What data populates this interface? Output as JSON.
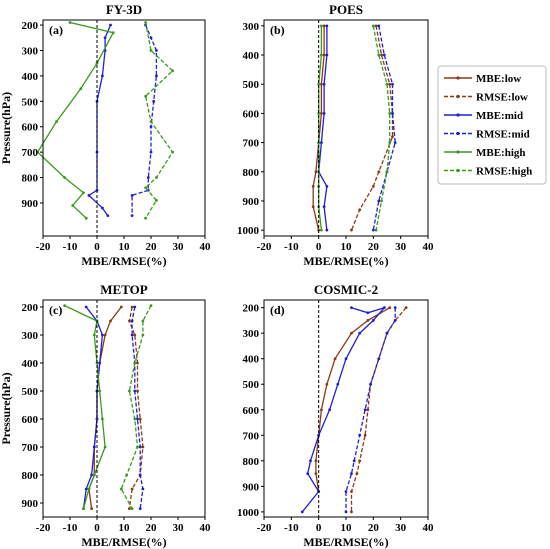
{
  "chart_data": [
    {
      "type": "line",
      "panel": "(a)",
      "title": "FY-3D",
      "xlabel": "MBE/RMSE(%)",
      "ylabel": "Pressure(hPa)",
      "xlim": [
        -20,
        40
      ],
      "ylim": [
        180,
        1030
      ],
      "y_inverted": true,
      "xticks": [
        -20,
        -10,
        0,
        10,
        20,
        30,
        40
      ],
      "yticks": [
        200,
        300,
        400,
        500,
        600,
        700,
        800,
        900
      ],
      "series": [
        {
          "name": "MBE:mid",
          "color": "#1f1fd6",
          "style": "solid",
          "points": [
            [
              5,
              200
            ],
            [
              3,
              250
            ],
            [
              3,
              300
            ],
            [
              2,
              400
            ],
            [
              0,
              500
            ],
            [
              0,
              700
            ],
            [
              0,
              850
            ],
            [
              -3,
              870
            ],
            [
              2,
              920
            ],
            [
              4,
              950
            ]
          ]
        },
        {
          "name": "RMSE:mid",
          "color": "#1f1fd6",
          "style": "dashed",
          "points": [
            [
              18,
              200
            ],
            [
              20,
              250
            ],
            [
              22,
              300
            ],
            [
              22,
              400
            ],
            [
              21,
              500
            ],
            [
              20,
              600
            ],
            [
              20,
              700
            ],
            [
              19,
              800
            ],
            [
              19,
              850
            ],
            [
              13,
              870
            ],
            [
              13,
              950
            ]
          ]
        },
        {
          "name": "MBE:high",
          "color": "#3a9a1a",
          "style": "solid",
          "points": [
            [
              -10,
              190
            ],
            [
              6,
              230
            ],
            [
              0,
              350
            ],
            [
              -6,
              450
            ],
            [
              -15,
              580
            ],
            [
              -22,
              700
            ],
            [
              -12,
              800
            ],
            [
              -5,
              860
            ],
            [
              -9,
              910
            ],
            [
              -4,
              960
            ]
          ]
        },
        {
          "name": "RMSE:high",
          "color": "#3a9a1a",
          "style": "dashed",
          "points": [
            [
              18,
              190
            ],
            [
              20,
              300
            ],
            [
              28,
              380
            ],
            [
              18,
              480
            ],
            [
              20,
              580
            ],
            [
              28,
              700
            ],
            [
              22,
              800
            ],
            [
              18,
              840
            ],
            [
              22,
              890
            ],
            [
              18,
              960
            ]
          ]
        }
      ]
    },
    {
      "type": "line",
      "panel": "(b)",
      "title": "POES",
      "xlabel": "MBE/RMSE(%)",
      "ylabel": "",
      "xlim": [
        -20,
        40
      ],
      "ylim": [
        280,
        1020
      ],
      "y_inverted": true,
      "xticks": [
        -20,
        -10,
        0,
        10,
        20,
        30,
        40
      ],
      "yticks": [
        300,
        400,
        500,
        600,
        700,
        800,
        900,
        1000
      ],
      "series": [
        {
          "name": "MBE:low",
          "color": "#8b3a14",
          "style": "solid",
          "points": [
            [
              2,
              300
            ],
            [
              2,
              400
            ],
            [
              1,
              500
            ],
            [
              1,
              600
            ],
            [
              0,
              700
            ],
            [
              -1,
              800
            ],
            [
              -2,
              850
            ],
            [
              -2,
              920
            ],
            [
              0,
              1000
            ]
          ]
        },
        {
          "name": "RMSE:low",
          "color": "#8b3a14",
          "style": "dashed",
          "points": [
            [
              21,
              300
            ],
            [
              23,
              400
            ],
            [
              26,
              500
            ],
            [
              27,
              600
            ],
            [
              27,
              680
            ],
            [
              22,
              800
            ],
            [
              20,
              850
            ],
            [
              15,
              930
            ],
            [
              12,
              1000
            ]
          ]
        },
        {
          "name": "MBE:mid",
          "color": "#1f1fd6",
          "style": "solid",
          "points": [
            [
              3,
              300
            ],
            [
              3,
              400
            ],
            [
              2,
              500
            ],
            [
              2,
              600
            ],
            [
              1,
              700
            ],
            [
              0,
              800
            ],
            [
              3,
              850
            ],
            [
              2,
              920
            ],
            [
              3,
              1000
            ]
          ]
        },
        {
          "name": "RMSE:mid",
          "color": "#1f1fd6",
          "style": "dashed",
          "points": [
            [
              22,
              300
            ],
            [
              24,
              400
            ],
            [
              27,
              500
            ],
            [
              27,
              600
            ],
            [
              28,
              700
            ],
            [
              25,
              800
            ],
            [
              22,
              900
            ],
            [
              20,
              1000
            ]
          ]
        },
        {
          "name": "MBE:high",
          "color": "#3a9a1a",
          "style": "solid",
          "points": [
            [
              1,
              300
            ],
            [
              1,
              400
            ],
            [
              0,
              500
            ],
            [
              0,
              600
            ],
            [
              0,
              700
            ],
            [
              0,
              800
            ],
            [
              0,
              850
            ],
            [
              0,
              920
            ],
            [
              1,
              1000
            ]
          ]
        },
        {
          "name": "RMSE:high",
          "color": "#3a9a1a",
          "style": "dashed",
          "points": [
            [
              20,
              300
            ],
            [
              22,
              400
            ],
            [
              25,
              500
            ],
            [
              26,
              600
            ],
            [
              26,
              700
            ],
            [
              25,
              800
            ],
            [
              23,
              900
            ],
            [
              21,
              1000
            ]
          ]
        }
      ]
    },
    {
      "type": "line",
      "panel": "(c)",
      "title": "METOP",
      "xlabel": "MBE/RMSE(%)",
      "ylabel": "Pressure(hPa)",
      "xlim": [
        -20,
        40
      ],
      "ylim": [
        175,
        950
      ],
      "y_inverted": true,
      "xticks": [
        -20,
        -10,
        0,
        10,
        20,
        30,
        40
      ],
      "yticks": [
        200,
        300,
        400,
        500,
        600,
        700,
        800,
        900
      ],
      "series": [
        {
          "name": "MBE:low",
          "color": "#8b3a14",
          "style": "solid",
          "points": [
            [
              9,
              200
            ],
            [
              5,
              250
            ],
            [
              3,
              300
            ],
            [
              1,
              400
            ],
            [
              0,
              500
            ],
            [
              0,
              600
            ],
            [
              -1,
              700
            ],
            [
              -1,
              800
            ],
            [
              -3,
              850
            ],
            [
              -2,
              920
            ]
          ]
        },
        {
          "name": "RMSE:low",
          "color": "#8b3a14",
          "style": "dashed",
          "points": [
            [
              13,
              200
            ],
            [
              12,
              250
            ],
            [
              14,
              300
            ],
            [
              15,
              400
            ],
            [
              15,
              500
            ],
            [
              16,
              600
            ],
            [
              17,
              700
            ],
            [
              16,
              800
            ],
            [
              13,
              850
            ],
            [
              12,
              920
            ]
          ]
        },
        {
          "name": "MBE:mid",
          "color": "#1f1fd6",
          "style": "solid",
          "points": [
            [
              -4,
              200
            ],
            [
              0,
              250
            ],
            [
              2,
              300
            ],
            [
              1,
              400
            ],
            [
              0,
              500
            ],
            [
              0,
              600
            ],
            [
              -1,
              700
            ],
            [
              -2,
              800
            ],
            [
              -4,
              850
            ],
            [
              -5,
              920
            ]
          ]
        },
        {
          "name": "RMSE:mid",
          "color": "#1f1fd6",
          "style": "dashed",
          "points": [
            [
              14,
              200
            ],
            [
              13,
              250
            ],
            [
              13,
              300
            ],
            [
              14,
              400
            ],
            [
              14,
              500
            ],
            [
              15,
              600
            ],
            [
              16,
              700
            ],
            [
              16,
              800
            ],
            [
              17,
              850
            ],
            [
              16,
              920
            ]
          ]
        },
        {
          "name": "MBE:high",
          "color": "#3a9a1a",
          "style": "solid",
          "points": [
            [
              -12,
              195
            ],
            [
              0,
              250
            ],
            [
              -1,
              300
            ],
            [
              0,
              400
            ],
            [
              1,
              500
            ],
            [
              2,
              600
            ],
            [
              3,
              700
            ],
            [
              -1,
              800
            ],
            [
              -3,
              850
            ],
            [
              -5,
              920
            ]
          ]
        },
        {
          "name": "RMSE:high",
          "color": "#3a9a1a",
          "style": "dashed",
          "points": [
            [
              20,
              195
            ],
            [
              17,
              250
            ],
            [
              17,
              300
            ],
            [
              14,
              400
            ],
            [
              12,
              500
            ],
            [
              14,
              600
            ],
            [
              15,
              700
            ],
            [
              11,
              800
            ],
            [
              9,
              850
            ],
            [
              13,
              920
            ]
          ]
        }
      ]
    },
    {
      "type": "line",
      "panel": "(d)",
      "title": "COSMIC-2",
      "xlabel": "MBE/RMSE(%)",
      "ylabel": "",
      "xlim": [
        -20,
        40
      ],
      "ylim": [
        170,
        1020
      ],
      "y_inverted": true,
      "xticks": [
        -20,
        -10,
        0,
        10,
        20,
        30,
        40
      ],
      "yticks": [
        200,
        300,
        400,
        500,
        600,
        700,
        800,
        900,
        1000
      ],
      "series": [
        {
          "name": "MBE:low",
          "color": "#8b3a14",
          "style": "solid",
          "points": [
            [
              26,
              200
            ],
            [
              18,
              250
            ],
            [
              12,
              300
            ],
            [
              6,
              400
            ],
            [
              3,
              500
            ],
            [
              1,
              600
            ],
            [
              0,
              700
            ],
            [
              -1,
              800
            ],
            [
              -1,
              850
            ],
            [
              0,
              920
            ]
          ]
        },
        {
          "name": "RMSE:low",
          "color": "#8b3a14",
          "style": "dashed",
          "points": [
            [
              32,
              200
            ],
            [
              28,
              250
            ],
            [
              25,
              300
            ],
            [
              22,
              400
            ],
            [
              19,
              500
            ],
            [
              18,
              600
            ],
            [
              17,
              700
            ],
            [
              15,
              800
            ],
            [
              14,
              850
            ],
            [
              12,
              920
            ],
            [
              12,
              1000
            ]
          ]
        },
        {
          "name": "MBE:mid",
          "color": "#1f1fd6",
          "style": "solid",
          "points": [
            [
              12,
              200
            ],
            [
              18,
              220
            ],
            [
              24,
              200
            ],
            [
              20,
              250
            ],
            [
              15,
              300
            ],
            [
              10,
              400
            ],
            [
              7,
              500
            ],
            [
              4,
              600
            ],
            [
              0,
              700
            ],
            [
              -3,
              800
            ],
            [
              -4,
              850
            ],
            [
              0,
              920
            ],
            [
              -6,
              1000
            ]
          ]
        },
        {
          "name": "RMSE:mid",
          "color": "#1f1fd6",
          "style": "dashed",
          "points": [
            [
              28,
              200
            ],
            [
              28,
              250
            ],
            [
              25,
              300
            ],
            [
              22,
              400
            ],
            [
              19,
              500
            ],
            [
              17,
              600
            ],
            [
              15,
              700
            ],
            [
              13,
              800
            ],
            [
              12,
              850
            ],
            [
              10,
              920
            ],
            [
              10,
              1000
            ]
          ]
        }
      ]
    }
  ],
  "legend": {
    "placement": "right",
    "entries": [
      {
        "label": "MBE:low",
        "color": "#8b3a14",
        "style": "solid"
      },
      {
        "label": "RMSE:low",
        "color": "#8b3a14",
        "style": "dashed"
      },
      {
        "label": "MBE:mid",
        "color": "#1f1fd6",
        "style": "solid"
      },
      {
        "label": "RMSE:mid",
        "color": "#1f1fd6",
        "style": "dashed"
      },
      {
        "label": "MBE:high",
        "color": "#3a9a1a",
        "style": "solid"
      },
      {
        "label": "RMSE:high",
        "color": "#3a9a1a",
        "style": "dashed"
      }
    ]
  }
}
